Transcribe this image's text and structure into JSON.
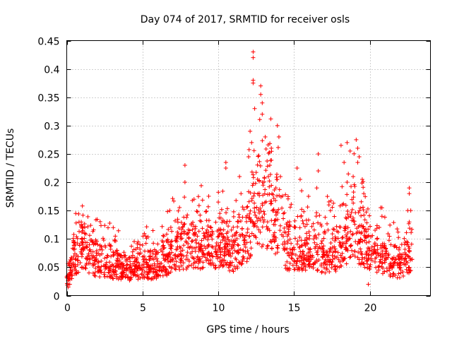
{
  "chart_data": {
    "type": "scatter",
    "title": "Day 074 of 2017, SRMTID for receiver osls",
    "xlabel": "GPS time / hours",
    "ylabel": "SRMTID / TECUs",
    "xlim": [
      0,
      24
    ],
    "ylim": [
      0,
      0.45
    ],
    "x_ticks": [
      0,
      5,
      10,
      15,
      20
    ],
    "x_tick_labels": [
      "0",
      "5",
      "10",
      "15",
      "20"
    ],
    "y_ticks": [
      0,
      0.05,
      0.1,
      0.15,
      0.2,
      0.25,
      0.3,
      0.35,
      0.4,
      0.45
    ],
    "y_tick_labels": [
      "0",
      "0.05",
      "0.1",
      "0.15",
      "0.2",
      "0.25",
      "0.3",
      "0.35",
      "0.4",
      "0.45"
    ],
    "grid": true,
    "marker": "+",
    "color": "#ff0000",
    "data_x_range": [
      0,
      22.8
    ],
    "baseline_profile": [
      {
        "x": 0.0,
        "y": 0.03
      },
      {
        "x": 0.5,
        "y": 0.06
      },
      {
        "x": 1.0,
        "y": 0.085
      },
      {
        "x": 1.5,
        "y": 0.07
      },
      {
        "x": 2.0,
        "y": 0.06
      },
      {
        "x": 3.0,
        "y": 0.055
      },
      {
        "x": 4.0,
        "y": 0.045
      },
      {
        "x": 5.0,
        "y": 0.055
      },
      {
        "x": 6.0,
        "y": 0.05
      },
      {
        "x": 6.5,
        "y": 0.06
      },
      {
        "x": 7.0,
        "y": 0.075
      },
      {
        "x": 8.0,
        "y": 0.08
      },
      {
        "x": 9.0,
        "y": 0.085
      },
      {
        "x": 10.0,
        "y": 0.085
      },
      {
        "x": 11.0,
        "y": 0.075
      },
      {
        "x": 11.5,
        "y": 0.085
      },
      {
        "x": 12.0,
        "y": 0.11
      },
      {
        "x": 12.5,
        "y": 0.16
      },
      {
        "x": 13.0,
        "y": 0.15
      },
      {
        "x": 13.5,
        "y": 0.15
      },
      {
        "x": 14.0,
        "y": 0.12
      },
      {
        "x": 14.5,
        "y": 0.08
      },
      {
        "x": 15.0,
        "y": 0.08
      },
      {
        "x": 16.0,
        "y": 0.08
      },
      {
        "x": 17.0,
        "y": 0.07
      },
      {
        "x": 18.0,
        "y": 0.08
      },
      {
        "x": 18.5,
        "y": 0.1
      },
      {
        "x": 19.0,
        "y": 0.11
      },
      {
        "x": 19.5,
        "y": 0.09
      },
      {
        "x": 20.0,
        "y": 0.075
      },
      {
        "x": 21.0,
        "y": 0.065
      },
      {
        "x": 22.0,
        "y": 0.055
      },
      {
        "x": 22.8,
        "y": 0.07
      }
    ],
    "notable_points": [
      {
        "x": 12.3,
        "y": 0.43
      },
      {
        "x": 12.3,
        "y": 0.42
      },
      {
        "x": 12.3,
        "y": 0.38
      },
      {
        "x": 12.3,
        "y": 0.375
      },
      {
        "x": 12.4,
        "y": 0.33
      },
      {
        "x": 12.8,
        "y": 0.37
      },
      {
        "x": 12.8,
        "y": 0.355
      },
      {
        "x": 12.9,
        "y": 0.34
      },
      {
        "x": 12.9,
        "y": 0.32
      },
      {
        "x": 12.1,
        "y": 0.29
      },
      {
        "x": 12.2,
        "y": 0.27
      },
      {
        "x": 12.0,
        "y": 0.245
      },
      {
        "x": 13.1,
        "y": 0.28
      },
      {
        "x": 13.4,
        "y": 0.23
      },
      {
        "x": 13.3,
        "y": 0.21
      },
      {
        "x": 13.5,
        "y": 0.26
      },
      {
        "x": 13.9,
        "y": 0.3
      },
      {
        "x": 14.0,
        "y": 0.28
      },
      {
        "x": 14.1,
        "y": 0.21
      },
      {
        "x": 13.8,
        "y": 0.19
      },
      {
        "x": 11.4,
        "y": 0.21
      },
      {
        "x": 11.5,
        "y": 0.18
      },
      {
        "x": 10.5,
        "y": 0.235
      },
      {
        "x": 10.5,
        "y": 0.225
      },
      {
        "x": 10.0,
        "y": 0.165
      },
      {
        "x": 10.1,
        "y": 0.145
      },
      {
        "x": 7.8,
        "y": 0.23
      },
      {
        "x": 7.8,
        "y": 0.2
      },
      {
        "x": 8.4,
        "y": 0.17
      },
      {
        "x": 6.8,
        "y": 0.15
      },
      {
        "x": 15.2,
        "y": 0.225
      },
      {
        "x": 15.4,
        "y": 0.205
      },
      {
        "x": 15.5,
        "y": 0.185
      },
      {
        "x": 16.6,
        "y": 0.25
      },
      {
        "x": 16.6,
        "y": 0.22
      },
      {
        "x": 16.5,
        "y": 0.19
      },
      {
        "x": 17.2,
        "y": 0.175
      },
      {
        "x": 17.3,
        "y": 0.16
      },
      {
        "x": 17.4,
        "y": 0.15
      },
      {
        "x": 18.1,
        "y": 0.265
      },
      {
        "x": 18.3,
        "y": 0.235
      },
      {
        "x": 18.5,
        "y": 0.2
      },
      {
        "x": 18.5,
        "y": 0.27
      },
      {
        "x": 18.7,
        "y": 0.255
      },
      {
        "x": 18.9,
        "y": 0.21
      },
      {
        "x": 19.1,
        "y": 0.275
      },
      {
        "x": 19.2,
        "y": 0.26
      },
      {
        "x": 19.3,
        "y": 0.245
      },
      {
        "x": 19.2,
        "y": 0.235
      },
      {
        "x": 19.5,
        "y": 0.205
      },
      {
        "x": 19.6,
        "y": 0.18
      },
      {
        "x": 20.8,
        "y": 0.155
      },
      {
        "x": 20.8,
        "y": 0.14
      },
      {
        "x": 22.6,
        "y": 0.19
      },
      {
        "x": 22.6,
        "y": 0.18
      },
      {
        "x": 22.5,
        "y": 0.15
      },
      {
        "x": 22.7,
        "y": 0.15
      },
      {
        "x": 22.6,
        "y": 0.13
      },
      {
        "x": 19.9,
        "y": 0.02
      },
      {
        "x": 0.1,
        "y": 0.015
      },
      {
        "x": 0.2,
        "y": 0.02
      }
    ]
  }
}
